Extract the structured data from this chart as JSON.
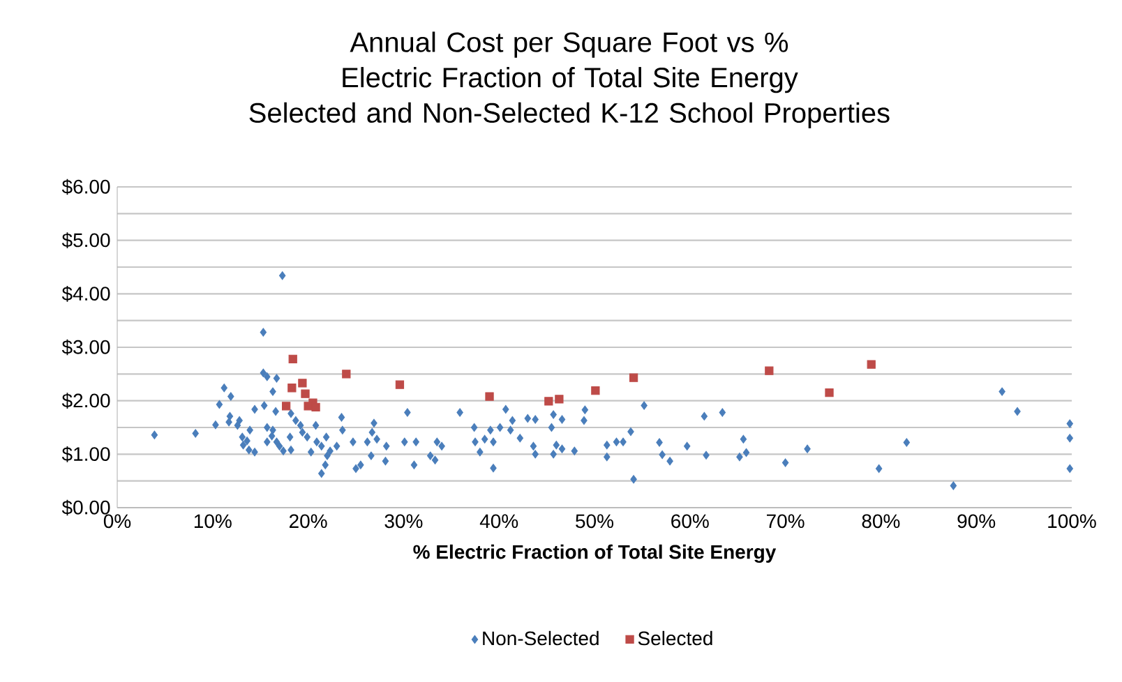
{
  "chart_data": {
    "type": "scatter",
    "title": "Annual Cost per Square Foot vs % Electric Fraction of Total Site Energy",
    "subtitle": "Selected and Non-Selected K-12 School Properties",
    "xlabel": "% Electric Fraction of Total Site Energy",
    "xlim": [
      0,
      100
    ],
    "xticks": [
      {
        "value": 0,
        "label": "0%"
      },
      {
        "value": 10,
        "label": "10%"
      },
      {
        "value": 20,
        "label": "20%"
      },
      {
        "value": 30,
        "label": "30%"
      },
      {
        "value": 40,
        "label": "40%"
      },
      {
        "value": 50,
        "label": "50%"
      },
      {
        "value": 60,
        "label": "60%"
      },
      {
        "value": 70,
        "label": "70%"
      },
      {
        "value": 80,
        "label": "80%"
      },
      {
        "value": 90,
        "label": "90%"
      },
      {
        "value": 100,
        "label": "100%"
      }
    ],
    "ylim": [
      0,
      6
    ],
    "yticks": [
      {
        "value": 0,
        "label": "$0.00"
      },
      {
        "value": 0.5,
        "label": null
      },
      {
        "value": 1,
        "label": "$1.00"
      },
      {
        "value": 1.5,
        "label": null
      },
      {
        "value": 2,
        "label": "$2.00"
      },
      {
        "value": 2.5,
        "label": null
      },
      {
        "value": 3,
        "label": "$3.00"
      },
      {
        "value": 3.5,
        "label": null
      },
      {
        "value": 4,
        "label": "$4.00"
      },
      {
        "value": 4.5,
        "label": null
      },
      {
        "value": 5,
        "label": "$5.00"
      },
      {
        "value": 5.5,
        "label": null
      },
      {
        "value": 6,
        "label": "$6.00"
      }
    ],
    "grid": "y",
    "legend": "bottom",
    "series": [
      {
        "name": "Non-Selected",
        "color": "#4a7ebb",
        "marker": "diamond",
        "x": [
          17.3,
          15.3,
          3.9,
          8.2,
          11.2,
          11.9,
          10.7,
          10.3,
          11.8,
          11.7,
          12.8,
          12.6,
          13.9,
          13.1,
          13.6,
          13.2,
          13.8,
          14.4,
          14.4,
          15.4,
          15.3,
          15.7,
          16.7,
          16.3,
          16.6,
          15.7,
          16.3,
          16.2,
          15.7,
          16.7,
          17.0,
          17.4,
          18.2,
          18.1,
          18.2,
          18.7,
          19.2,
          19.4,
          19.9,
          20.3,
          20.8,
          20.9,
          21.4,
          21.9,
          22.0,
          22.3,
          21.8,
          21.4,
          23.0,
          23.5,
          23.6,
          24.7,
          25.0,
          25.5,
          26.9,
          26.7,
          26.2,
          27.2,
          26.6,
          28.2,
          28.1,
          30.4,
          30.1,
          31.3,
          31.1,
          32.8,
          33.3,
          33.5,
          34.0,
          35.9,
          37.4,
          37.5,
          38.0,
          38.5,
          39.1,
          39.4,
          39.4,
          40.1,
          40.7,
          41.2,
          41.4,
          42.2,
          43.0,
          43.8,
          43.6,
          43.8,
          45.7,
          46.6,
          45.5,
          46.0,
          45.7,
          46.6,
          47.9,
          49.0,
          48.9,
          51.3,
          51.3,
          52.3,
          53.0,
          53.8,
          55.2,
          54.1,
          56.8,
          57.1,
          57.9,
          59.7,
          61.5,
          61.7,
          63.4,
          65.6,
          65.2,
          65.9,
          70.0,
          72.3,
          92.7,
          94.3,
          99.8,
          99.8,
          99.8,
          82.7,
          79.8,
          87.6
        ],
        "values": [
          4.34,
          3.28,
          1.36,
          1.39,
          2.24,
          2.08,
          1.93,
          1.55,
          1.71,
          1.6,
          1.63,
          1.54,
          1.45,
          1.32,
          1.25,
          1.17,
          1.08,
          1.04,
          1.84,
          1.91,
          2.52,
          2.45,
          2.42,
          2.17,
          1.8,
          1.5,
          1.45,
          1.34,
          1.23,
          1.23,
          1.15,
          1.06,
          1.08,
          1.32,
          1.76,
          1.63,
          1.54,
          1.41,
          1.32,
          1.04,
          1.54,
          1.23,
          1.15,
          1.32,
          0.97,
          1.06,
          0.8,
          0.64,
          1.15,
          1.69,
          1.45,
          1.23,
          0.73,
          0.8,
          1.58,
          1.41,
          1.23,
          1.28,
          0.97,
          1.15,
          0.87,
          1.78,
          1.23,
          1.23,
          0.8,
          0.97,
          0.89,
          1.23,
          1.15,
          1.78,
          1.5,
          1.23,
          1.04,
          1.28,
          1.45,
          1.23,
          0.74,
          1.5,
          1.84,
          1.45,
          1.63,
          1.3,
          1.67,
          1.65,
          1.15,
          1.0,
          1.74,
          1.65,
          1.5,
          1.17,
          1.0,
          1.1,
          1.06,
          1.83,
          1.63,
          1.17,
          0.95,
          1.23,
          1.23,
          1.42,
          1.91,
          0.53,
          1.22,
          0.99,
          0.87,
          1.15,
          1.71,
          0.98,
          1.78,
          1.28,
          0.95,
          1.03,
          0.84,
          1.1,
          2.17,
          1.8,
          1.57,
          1.3,
          0.73,
          1.22,
          0.73,
          0.41
        ]
      },
      {
        "name": "Selected",
        "color": "#be4b48",
        "marker": "square",
        "x": [
          18.4,
          19.4,
          18.3,
          19.7,
          20.5,
          20.0,
          20.8,
          17.7,
          24.0,
          29.6,
          39.0,
          45.2,
          46.3,
          50.1,
          54.1,
          68.3,
          74.6,
          79.0
        ],
        "values": [
          2.78,
          2.33,
          2.24,
          2.13,
          1.96,
          1.9,
          1.88,
          1.9,
          2.5,
          2.3,
          2.08,
          1.99,
          2.03,
          2.19,
          2.43,
          2.56,
          2.15,
          2.68
        ]
      }
    ]
  }
}
